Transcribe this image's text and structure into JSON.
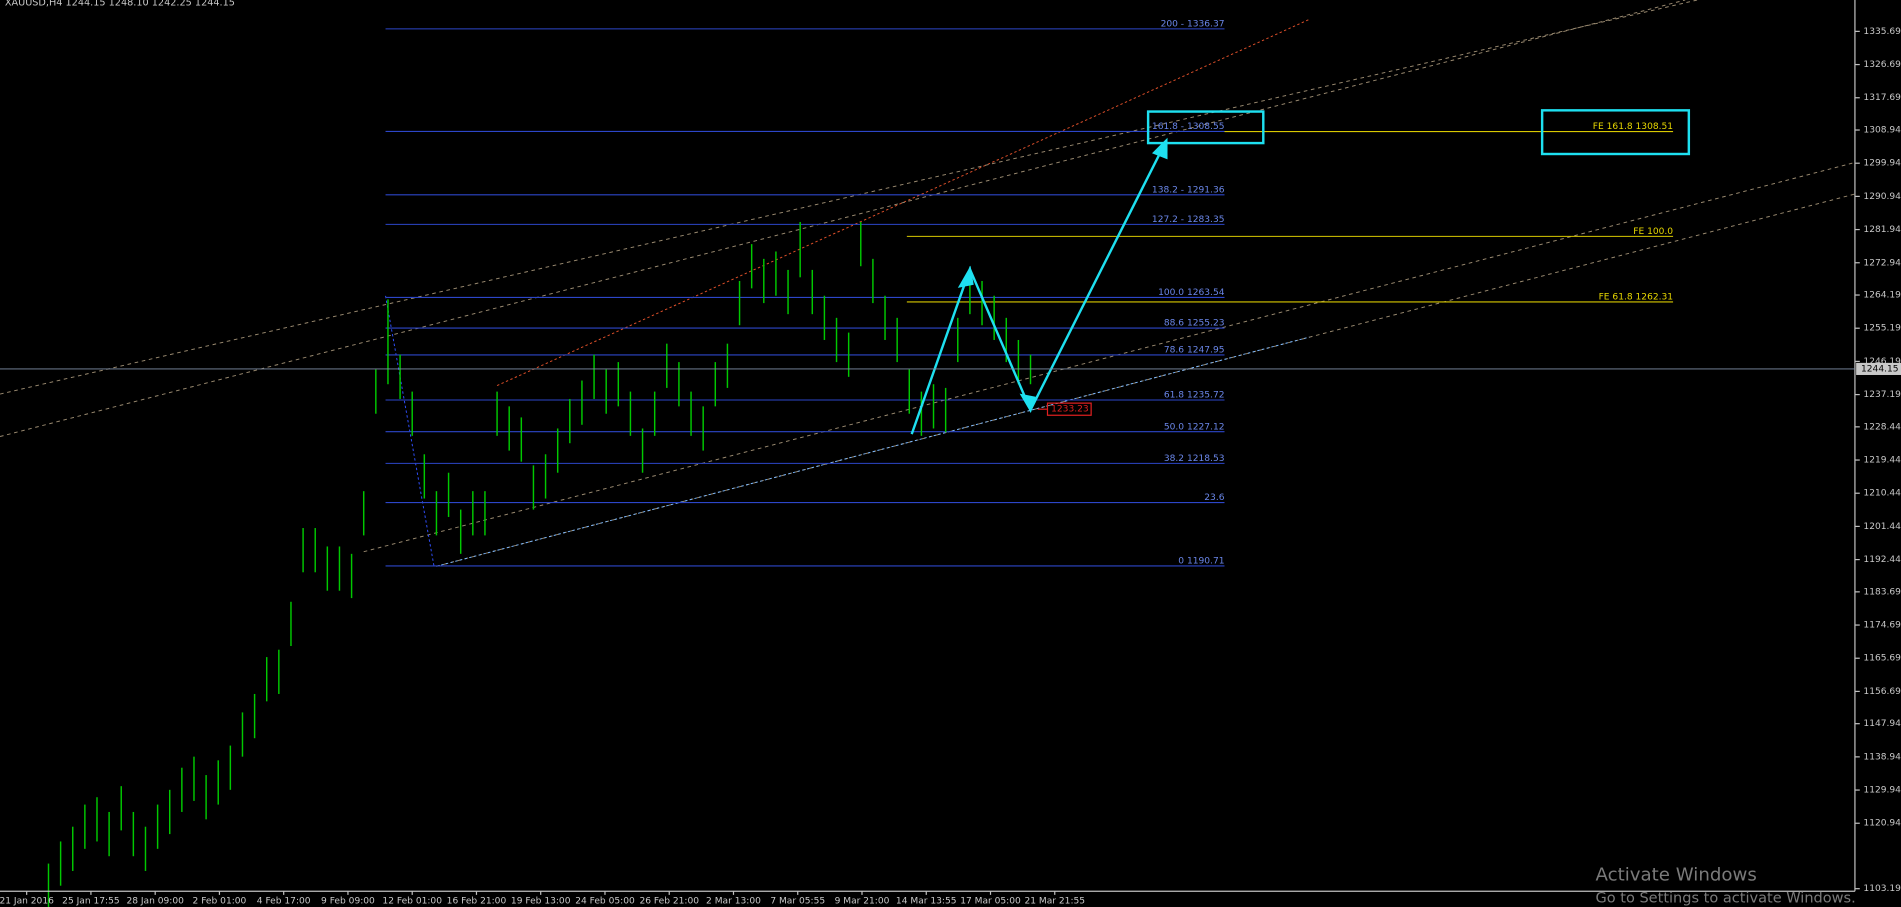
{
  "chart_data": {
    "type": "ohlc",
    "title": "XAUUSD,H4  1244.15 1248.10 1242.25 1244.15",
    "color": "#00c800",
    "categories": [
      "21 Jan 2016",
      "25 Jan 17:55",
      "28 Jan 09:00",
      "2 Feb 01:00",
      "4 Feb 17:00",
      "9 Feb 09:00",
      "12 Feb 01:00",
      "16 Feb 21:00",
      "19 Feb 13:00",
      "24 Feb 05:00",
      "26 Feb 21:00",
      "2 Mar 13:00",
      "7 Mar 05:55",
      "9 Mar 21:00",
      "14 Mar 13:55",
      "17 Mar 05:00",
      "21 Mar 21:55"
    ],
    "high": [
      1110,
      1116,
      1120,
      1126,
      1128,
      1124,
      1131,
      1124,
      1120,
      1126,
      1130,
      1136,
      1139,
      1134,
      1138,
      1142,
      1151,
      1156,
      1166,
      1168,
      1181,
      1201,
      1201,
      1196,
      1196,
      1194,
      1211,
      1244,
      1263,
      1248,
      1238,
      1221,
      1211,
      1216,
      1206,
      1211,
      1211,
      1238,
      1234,
      1231,
      1218,
      1221,
      1228,
      1236,
      1241,
      1248,
      1244,
      1246,
      1238,
      1228,
      1238,
      1251,
      1246,
      1238,
      1234,
      1246,
      1251,
      1268,
      1278,
      1274,
      1276,
      1271,
      1284,
      1271,
      1264,
      1258,
      1254,
      1284,
      1274,
      1264,
      1258,
      1244,
      1238,
      1240,
      1239,
      1258,
      1271,
      1268,
      1264,
      1258,
      1252,
      1248
    ],
    "low": [
      1098,
      1104,
      1108,
      1114,
      1116,
      1112,
      1119,
      1112,
      1108,
      1114,
      1118,
      1124,
      1127,
      1122,
      1126,
      1130,
      1139,
      1144,
      1154,
      1156,
      1169,
      1189,
      1189,
      1184,
      1184,
      1182,
      1199,
      1232,
      1240,
      1236,
      1226,
      1209,
      1199,
      1204,
      1194,
      1199,
      1199,
      1226,
      1222,
      1219,
      1206,
      1209,
      1216,
      1224,
      1229,
      1236,
      1232,
      1234,
      1226,
      1216,
      1226,
      1239,
      1234,
      1226,
      1222,
      1234,
      1239,
      1256,
      1266,
      1262,
      1264,
      1259,
      1269,
      1259,
      1252,
      1246,
      1242,
      1272,
      1262,
      1252,
      1246,
      1232,
      1226,
      1228,
      1227,
      1246,
      1259,
      1256,
      1252,
      1246,
      1240,
      1240
    ],
    "ylim": [
      1102.5,
      1344.2
    ],
    "yticks": [
      1335.69,
      1326.69,
      1317.69,
      1308.94,
      1299.94,
      1290.94,
      1281.94,
      1272.94,
      1264.19,
      1255.19,
      1246.19,
      1237.19,
      1228.44,
      1219.44,
      1210.44,
      1201.44,
      1192.44,
      1183.69,
      1174.69,
      1165.69,
      1156.69,
      1147.94,
      1138.94,
      1129.94,
      1120.94,
      1103.19
    ],
    "last_price": 1244.15,
    "marked_price": 1233.23,
    "fib_levels": [
      {
        "label": "200 - 1336.37",
        "price": 1336.37
      },
      {
        "label": "161.8 - 1308.55",
        "price": 1308.55
      },
      {
        "label": "138.2 - 1291.36",
        "price": 1291.36
      },
      {
        "label": "127.2 - 1283.35",
        "price": 1283.35
      },
      {
        "label": "100.0 1263.54",
        "price": 1263.54
      },
      {
        "label": "88.6 1255.23",
        "price": 1255.23
      },
      {
        "label": "78.6 1247.95",
        "price": 1247.95
      },
      {
        "label": "61.8 1235.72",
        "price": 1235.72
      },
      {
        "label": "50.0 1227.12",
        "price": 1227.12
      },
      {
        "label": "38.2 1218.53",
        "price": 1218.53
      },
      {
        "label": "23.6",
        "price": 1207.9
      },
      {
        "label": "0 1190.71",
        "price": 1190.71
      }
    ],
    "fe_levels": [
      {
        "label": "FE 161.8 1308.51",
        "price": 1308.51
      },
      {
        "label": "FE 100.0",
        "price": 1280.1
      },
      {
        "label": "FE 61.8 1262.31",
        "price": 1262.31
      }
    ],
    "watermark": {
      "title": "Activate Windows",
      "subtitle": "Go to Settings to activate Windows."
    }
  }
}
